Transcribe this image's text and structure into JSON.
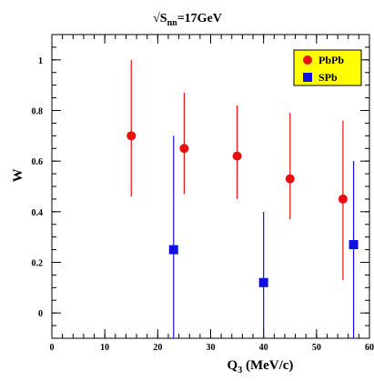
{
  "chart_data": {
    "type": "scatter",
    "title_prefix": "√S",
    "title_subscript": "nn",
    "title_suffix": "=17GeV",
    "xlabel_main": "Q",
    "xlabel_subscript": "3",
    "xlabel_suffix": " (MeV/c)",
    "ylabel": "W",
    "xlim": [
      0,
      60
    ],
    "ylim": [
      -0.1,
      1.1
    ],
    "x_ticks": [
      0,
      10,
      20,
      30,
      40,
      50,
      60
    ],
    "x_tick_labels": [
      "0",
      "10",
      "20",
      "30",
      "40",
      "50",
      "60"
    ],
    "y_ticks": [
      0,
      0.2,
      0.4,
      0.6,
      0.8,
      1
    ],
    "y_tick_labels": [
      "0",
      "0.2",
      "0.4",
      "0.6",
      "0.8",
      "1"
    ],
    "legend_position": "top-right",
    "series": [
      {
        "name": "PbPb",
        "marker": "circle",
        "color": "#e8100e",
        "points": [
          {
            "x": 15,
            "y": 0.7,
            "ylow": 0.46,
            "yhigh": 1.0
          },
          {
            "x": 25,
            "y": 0.65,
            "ylow": 0.47,
            "yhigh": 0.87
          },
          {
            "x": 35,
            "y": 0.62,
            "ylow": 0.45,
            "yhigh": 0.82
          },
          {
            "x": 45,
            "y": 0.53,
            "ylow": 0.37,
            "yhigh": 0.79
          },
          {
            "x": 55,
            "y": 0.45,
            "ylow": 0.13,
            "yhigh": 0.76
          }
        ]
      },
      {
        "name": "SPb",
        "marker": "square",
        "color": "#1010e0",
        "points": [
          {
            "x": 23,
            "y": 0.25,
            "ylow": -0.1,
            "yhigh": 0.7
          },
          {
            "x": 40,
            "y": 0.12,
            "ylow": -0.1,
            "yhigh": 0.4
          },
          {
            "x": 57,
            "y": 0.27,
            "ylow": -0.1,
            "yhigh": 0.6
          }
        ]
      }
    ],
    "legend_bg": "#ffff00"
  }
}
